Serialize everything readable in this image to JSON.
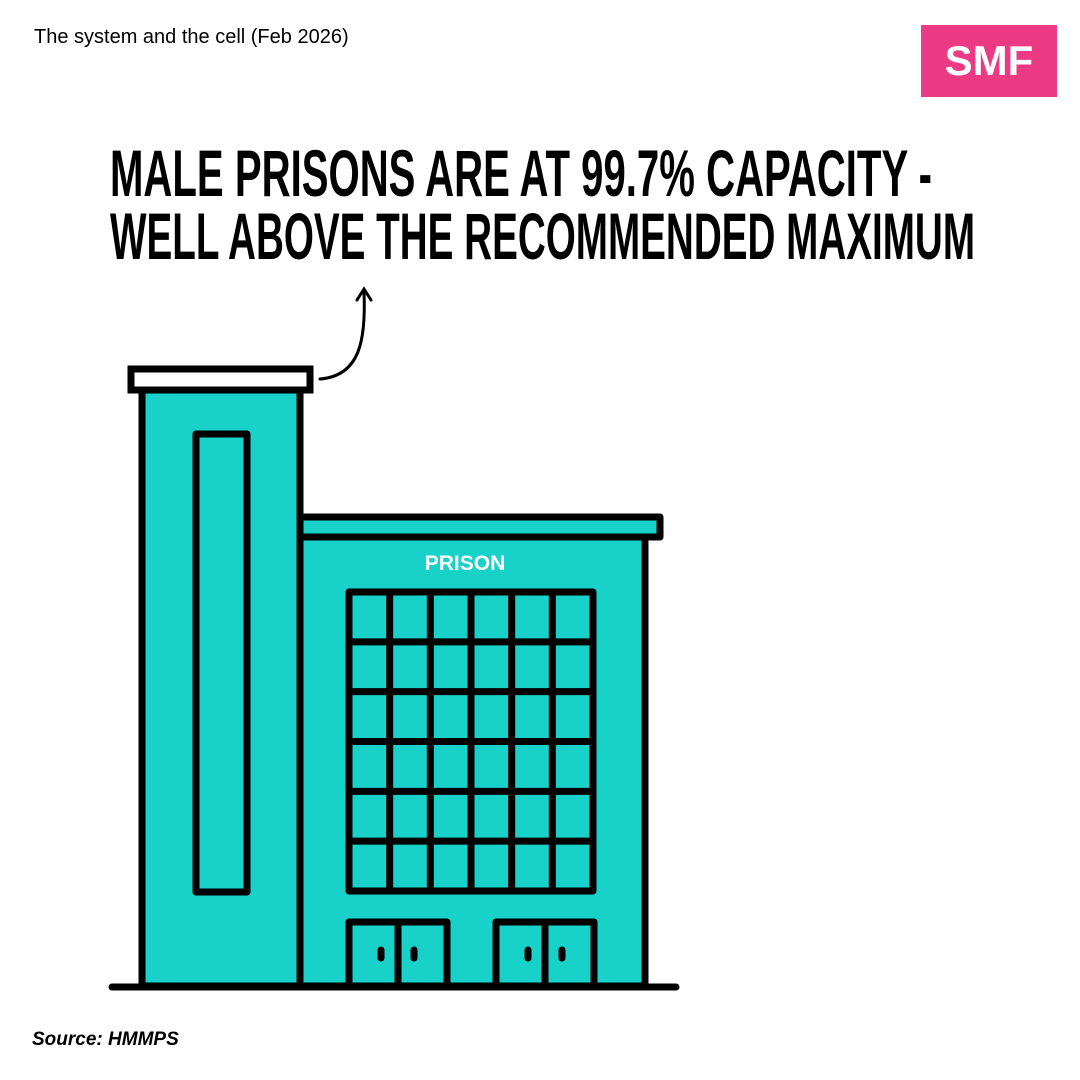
{
  "header": {
    "title": "The system and the cell (Feb 2026)",
    "logo": "SMF"
  },
  "headline": {
    "lines": [
      "MALE PRISONS ARE AT 99.7% CAPACITY -",
      "WELL ABOVE THE RECOMMENDED MAXIMUM"
    ]
  },
  "illustration": {
    "label": "PRISON"
  },
  "footer": {
    "source": "Source: HMMPS"
  }
}
